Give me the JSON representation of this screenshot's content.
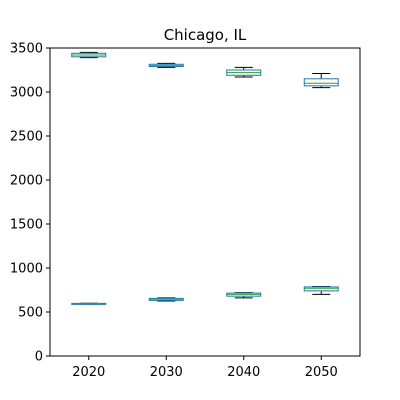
{
  "chart_data": {
    "type": "box",
    "title": "Chicago, IL",
    "xlabel": "",
    "ylabel": "",
    "categories": [
      "2020",
      "2030",
      "2040",
      "2050"
    ],
    "ylim": [
      0,
      3500
    ],
    "yticks": [
      0,
      500,
      1000,
      1500,
      2000,
      2500,
      3000,
      3500
    ],
    "grid": false,
    "series": [
      {
        "boxes": [
          {
            "category": "2020",
            "whisker_low": 3390,
            "q1": 3400,
            "median": 3420,
            "q3": 3440,
            "whisker_high": 3450
          },
          {
            "category": "2030",
            "whisker_low": 3280,
            "q1": 3290,
            "median": 3300,
            "q3": 3315,
            "whisker_high": 3325
          },
          {
            "category": "2040",
            "whisker_low": 3170,
            "q1": 3190,
            "median": 3220,
            "q3": 3250,
            "whisker_high": 3280
          },
          {
            "category": "2050",
            "whisker_low": 3050,
            "q1": 3070,
            "median": 3100,
            "q3": 3150,
            "whisker_high": 3210
          }
        ]
      },
      {
        "boxes": [
          {
            "category": "2020",
            "whisker_low": 590,
            "q1": 592,
            "median": 595,
            "q3": 598,
            "whisker_high": 600
          },
          {
            "category": "2030",
            "whisker_low": 625,
            "q1": 632,
            "median": 645,
            "q3": 655,
            "whisker_high": 660
          },
          {
            "category": "2040",
            "whisker_low": 660,
            "q1": 680,
            "median": 700,
            "q3": 715,
            "whisker_high": 720
          },
          {
            "category": "2050",
            "whisker_low": 700,
            "q1": 740,
            "median": 770,
            "q3": 785,
            "whisker_high": 790
          }
        ]
      }
    ],
    "colors": {
      "box": "#1f77b4",
      "median": "#2ca02c",
      "whisker": "#000000",
      "axis": "#000000"
    }
  }
}
